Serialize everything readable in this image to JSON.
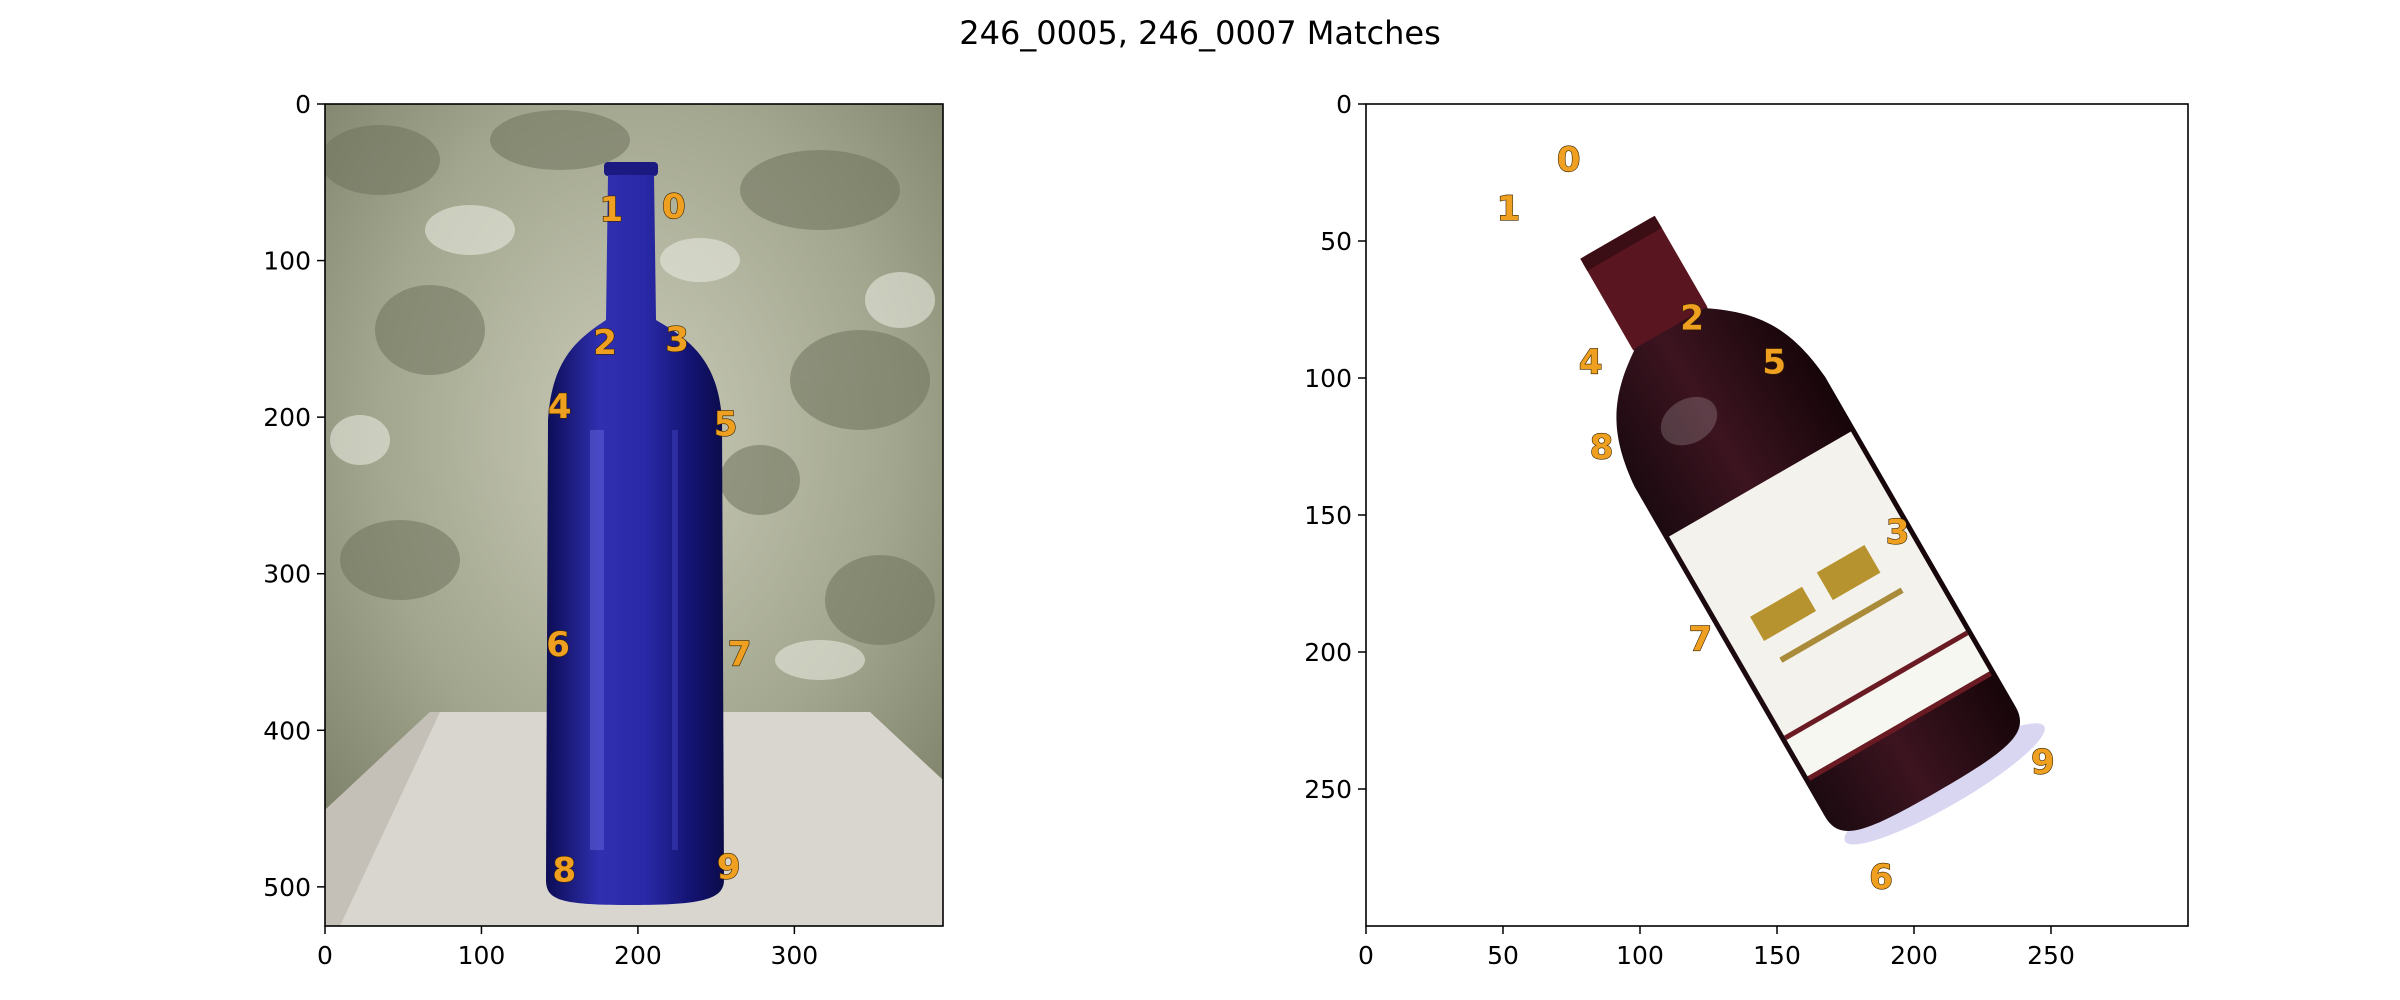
{
  "chart_data": {
    "title": "246_0005, 246_0007 Matches",
    "type": "scatter",
    "panels": [
      {
        "image": "blue-wine-bottle-photo",
        "xlim": [
          0,
          395
        ],
        "ylim": [
          525,
          0
        ],
        "xticks": [
          0,
          100,
          200,
          300
        ],
        "yticks": [
          0,
          100,
          200,
          300,
          400,
          500
        ],
        "points": [
          {
            "label": "0",
            "x": 223,
            "y": 65
          },
          {
            "label": "1",
            "x": 183,
            "y": 67
          },
          {
            "label": "2",
            "x": 179,
            "y": 152
          },
          {
            "label": "3",
            "x": 225,
            "y": 150
          },
          {
            "label": "4",
            "x": 150,
            "y": 193
          },
          {
            "label": "5",
            "x": 256,
            "y": 204
          },
          {
            "label": "6",
            "x": 149,
            "y": 345
          },
          {
            "label": "7",
            "x": 265,
            "y": 351
          },
          {
            "label": "8",
            "x": 153,
            "y": 489
          },
          {
            "label": "9",
            "x": 258,
            "y": 487
          }
        ]
      },
      {
        "image": "red-wine-bottle-photo",
        "xlim": [
          0,
          300
        ],
        "ylim": [
          300,
          0
        ],
        "xticks": [
          0,
          50,
          100,
          150,
          200,
          250
        ],
        "yticks": [
          0,
          50,
          100,
          150,
          200,
          250
        ],
        "points": [
          {
            "label": "0",
            "x": 74,
            "y": 20
          },
          {
            "label": "1",
            "x": 52,
            "y": 38
          },
          {
            "label": "2",
            "x": 119,
            "y": 78
          },
          {
            "label": "3",
            "x": 194,
            "y": 156
          },
          {
            "label": "4",
            "x": 82,
            "y": 94
          },
          {
            "label": "5",
            "x": 149,
            "y": 94
          },
          {
            "label": "6",
            "x": 188,
            "y": 282
          },
          {
            "label": "7",
            "x": 122,
            "y": 195
          },
          {
            "label": "8",
            "x": 86,
            "y": 125
          },
          {
            "label": "9",
            "x": 247,
            "y": 240
          }
        ]
      }
    ]
  }
}
